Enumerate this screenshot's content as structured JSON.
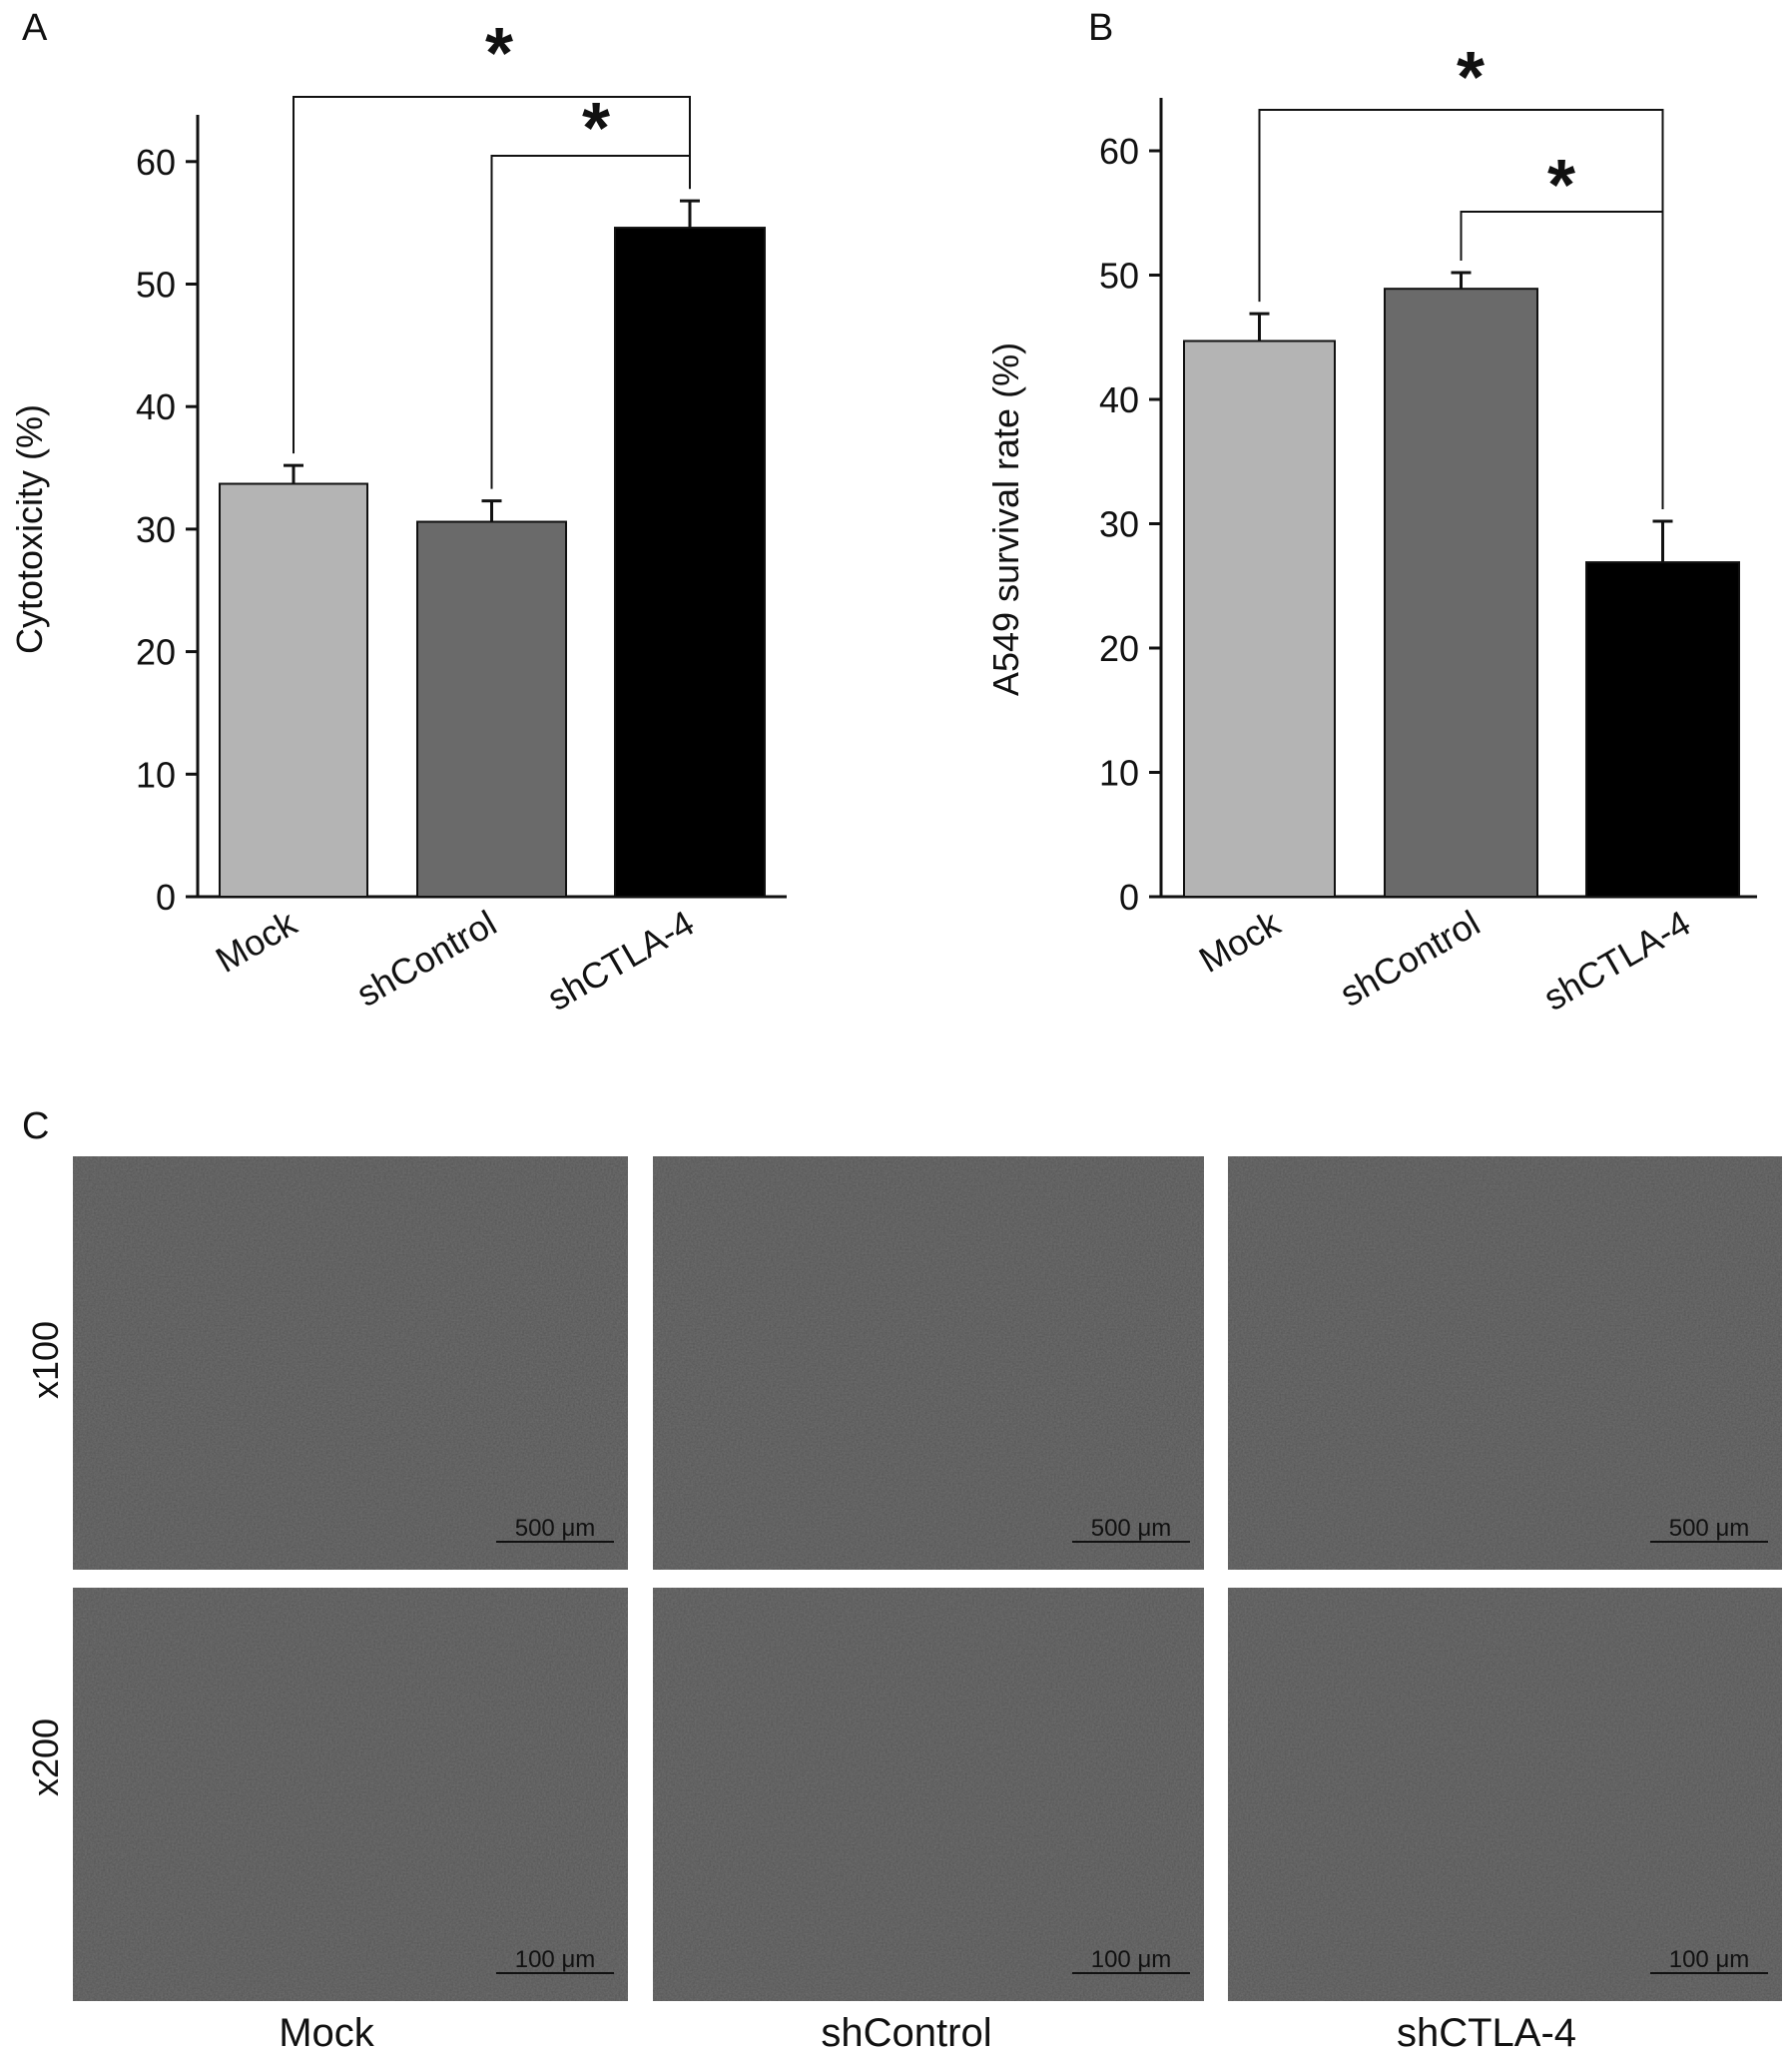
{
  "figure": {
    "panel_a_letter": "A",
    "panel_b_letter": "B",
    "panel_c_letter": "C"
  },
  "chart_data": [
    {
      "panel": "A",
      "type": "bar",
      "categories": [
        "Mock",
        "shControl",
        "shCTLA-4"
      ],
      "values": [
        33.7,
        30.6,
        54.6
      ],
      "errors": [
        1.5,
        1.7,
        2.2
      ],
      "bar_colors": [
        "#b4b4b4",
        "#6a6a6a",
        "#000000"
      ],
      "xlabel": "",
      "ylabel": "Cytotoxicity (%)",
      "ylim": [
        0,
        64
      ],
      "yticks": [
        0,
        10,
        20,
        30,
        40,
        50,
        60
      ],
      "grid": false,
      "annotations": [
        {
          "from": "Mock",
          "to": "shCTLA-4",
          "label": "*"
        },
        {
          "from": "shControl",
          "to": "shCTLA-4",
          "label": "*"
        }
      ]
    },
    {
      "panel": "B",
      "type": "bar",
      "categories": [
        "Mock",
        "shControl",
        "shCTLA-4"
      ],
      "values": [
        44.7,
        48.9,
        26.9
      ],
      "errors": [
        2.2,
        1.3,
        3.3
      ],
      "bar_colors": [
        "#b4b4b4",
        "#6a6a6a",
        "#000000"
      ],
      "xlabel": "",
      "ylabel": "A549 survival rate (%)",
      "ylim": [
        0,
        64
      ],
      "yticks": [
        0,
        10,
        20,
        30,
        40,
        50,
        60
      ],
      "grid": false,
      "annotations": [
        {
          "from": "Mock",
          "to": "shCTLA-4",
          "label": "*"
        },
        {
          "from": "shControl",
          "to": "shCTLA-4",
          "label": "*"
        }
      ]
    }
  ],
  "micrographs": {
    "rows": [
      "x100",
      "x200"
    ],
    "columns": [
      "Mock",
      "shControl",
      "shCTLA-4"
    ],
    "scale_bars": [
      "500 μm",
      "100 μm"
    ],
    "tile_color": "#6f6f6f"
  }
}
